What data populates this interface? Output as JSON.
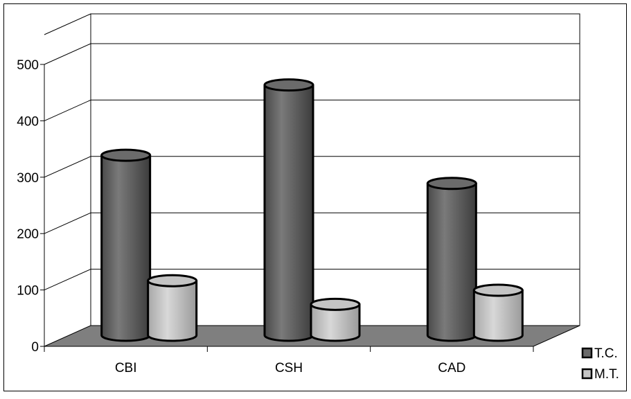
{
  "chart_data": {
    "type": "bar",
    "style": "3d-cylinder",
    "categories": [
      "CBI",
      "CSH",
      "CAD"
    ],
    "series": [
      {
        "name": "T.C.",
        "values": [
          320,
          445,
          270
        ],
        "color": "#6b6b6b"
      },
      {
        "name": "M.T.",
        "values": [
          97,
          55,
          80
        ],
        "color": "#c4c4c4"
      }
    ],
    "ylim": [
      0,
      500
    ],
    "yticks": [
      "0",
      "100",
      "200",
      "300",
      "400",
      "500"
    ],
    "grid": true,
    "legend_position": "bottom-right",
    "floor_color": "#7f7f7f"
  }
}
